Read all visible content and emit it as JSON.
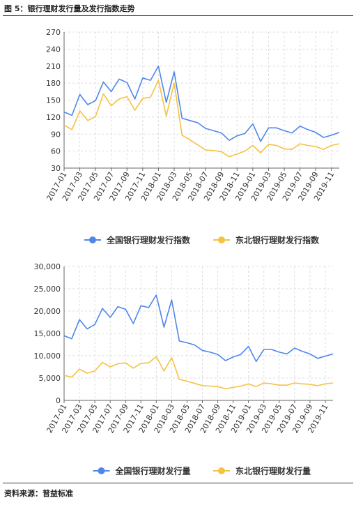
{
  "header": {
    "title": "图 5：银行理财发行量及发行指数走势"
  },
  "footer": {
    "source": "资料来源：普益标准"
  },
  "colors": {
    "series_national": "#4F86EC",
    "series_northeast": "#F5C242",
    "grid": "#dddddd",
    "axis": "#666666"
  },
  "chart_data": [
    {
      "type": "line",
      "x_labels": [
        "2017-01",
        "2017-03",
        "2017-05",
        "2017-07",
        "2017-09",
        "2017-11",
        "2018-01",
        "2018-03",
        "2018-05",
        "2018-07",
        "2018-09",
        "2018-11",
        "2019-01",
        "2019-03",
        "2019-05",
        "2019-07",
        "2019-09",
        "2019-11"
      ],
      "ylim": [
        30,
        270
      ],
      "yticks": [
        30,
        60,
        90,
        120,
        150,
        180,
        210,
        240,
        270
      ],
      "grid": true,
      "legend_position": "bottom",
      "series": [
        {
          "name": "全国银行理财发行指数",
          "values": [
            129,
            123,
            160,
            142,
            149,
            182,
            165,
            187,
            181,
            152,
            189,
            185,
            210,
            146,
            200,
            118,
            114,
            110,
            100,
            96,
            92,
            79,
            87,
            91,
            108,
            77,
            101,
            101,
            96,
            92,
            104,
            98,
            93,
            84,
            88,
            93
          ]
        },
        {
          "name": "东北银行理财发行指数",
          "values": [
            106,
            98,
            131,
            114,
            121,
            161,
            140,
            152,
            156,
            132,
            153,
            155,
            185,
            122,
            180,
            88,
            80,
            71,
            62,
            61,
            59,
            50,
            55,
            60,
            70,
            57,
            72,
            70,
            64,
            63,
            73,
            70,
            68,
            63,
            70,
            73
          ]
        }
      ]
    },
    {
      "type": "line",
      "x_labels": [
        "2017-01",
        "2017-03",
        "2017-05",
        "2017-07",
        "2017-09",
        "2017-11",
        "2018-01",
        "2018-03",
        "2018-05",
        "2018-07",
        "2018-09",
        "2018-11",
        "2019-01",
        "2019-03",
        "2019-05",
        "2019-07",
        "2019-09",
        "2019-11"
      ],
      "ylim": [
        0,
        30000
      ],
      "yticks": [
        0,
        5000,
        10000,
        15000,
        20000,
        25000,
        30000
      ],
      "ytick_labels": [
        "0",
        "5,000",
        "10,000",
        "15,000",
        "20,000",
        "25,000",
        "30,000"
      ],
      "grid": true,
      "legend_position": "bottom",
      "series": [
        {
          "name": "全国银行理财发行量",
          "values": [
            14500,
            13800,
            18100,
            16000,
            17000,
            20600,
            18600,
            21000,
            20400,
            17200,
            21200,
            20800,
            23600,
            16400,
            22500,
            13300,
            12900,
            12400,
            11200,
            10800,
            10300,
            8900,
            9700,
            10300,
            12100,
            8700,
            11400,
            11400,
            10800,
            10400,
            11700,
            11000,
            10400,
            9400,
            9900,
            10400
          ]
        },
        {
          "name": "东北银行理财发行量",
          "values": [
            5600,
            5200,
            7000,
            6100,
            6600,
            8500,
            7500,
            8200,
            8400,
            7200,
            8300,
            8400,
            9800,
            6600,
            9600,
            4700,
            4300,
            3800,
            3300,
            3200,
            3100,
            2600,
            2900,
            3200,
            3700,
            3100,
            3900,
            3700,
            3400,
            3400,
            3900,
            3700,
            3600,
            3300,
            3700,
            3900
          ]
        }
      ]
    }
  ]
}
